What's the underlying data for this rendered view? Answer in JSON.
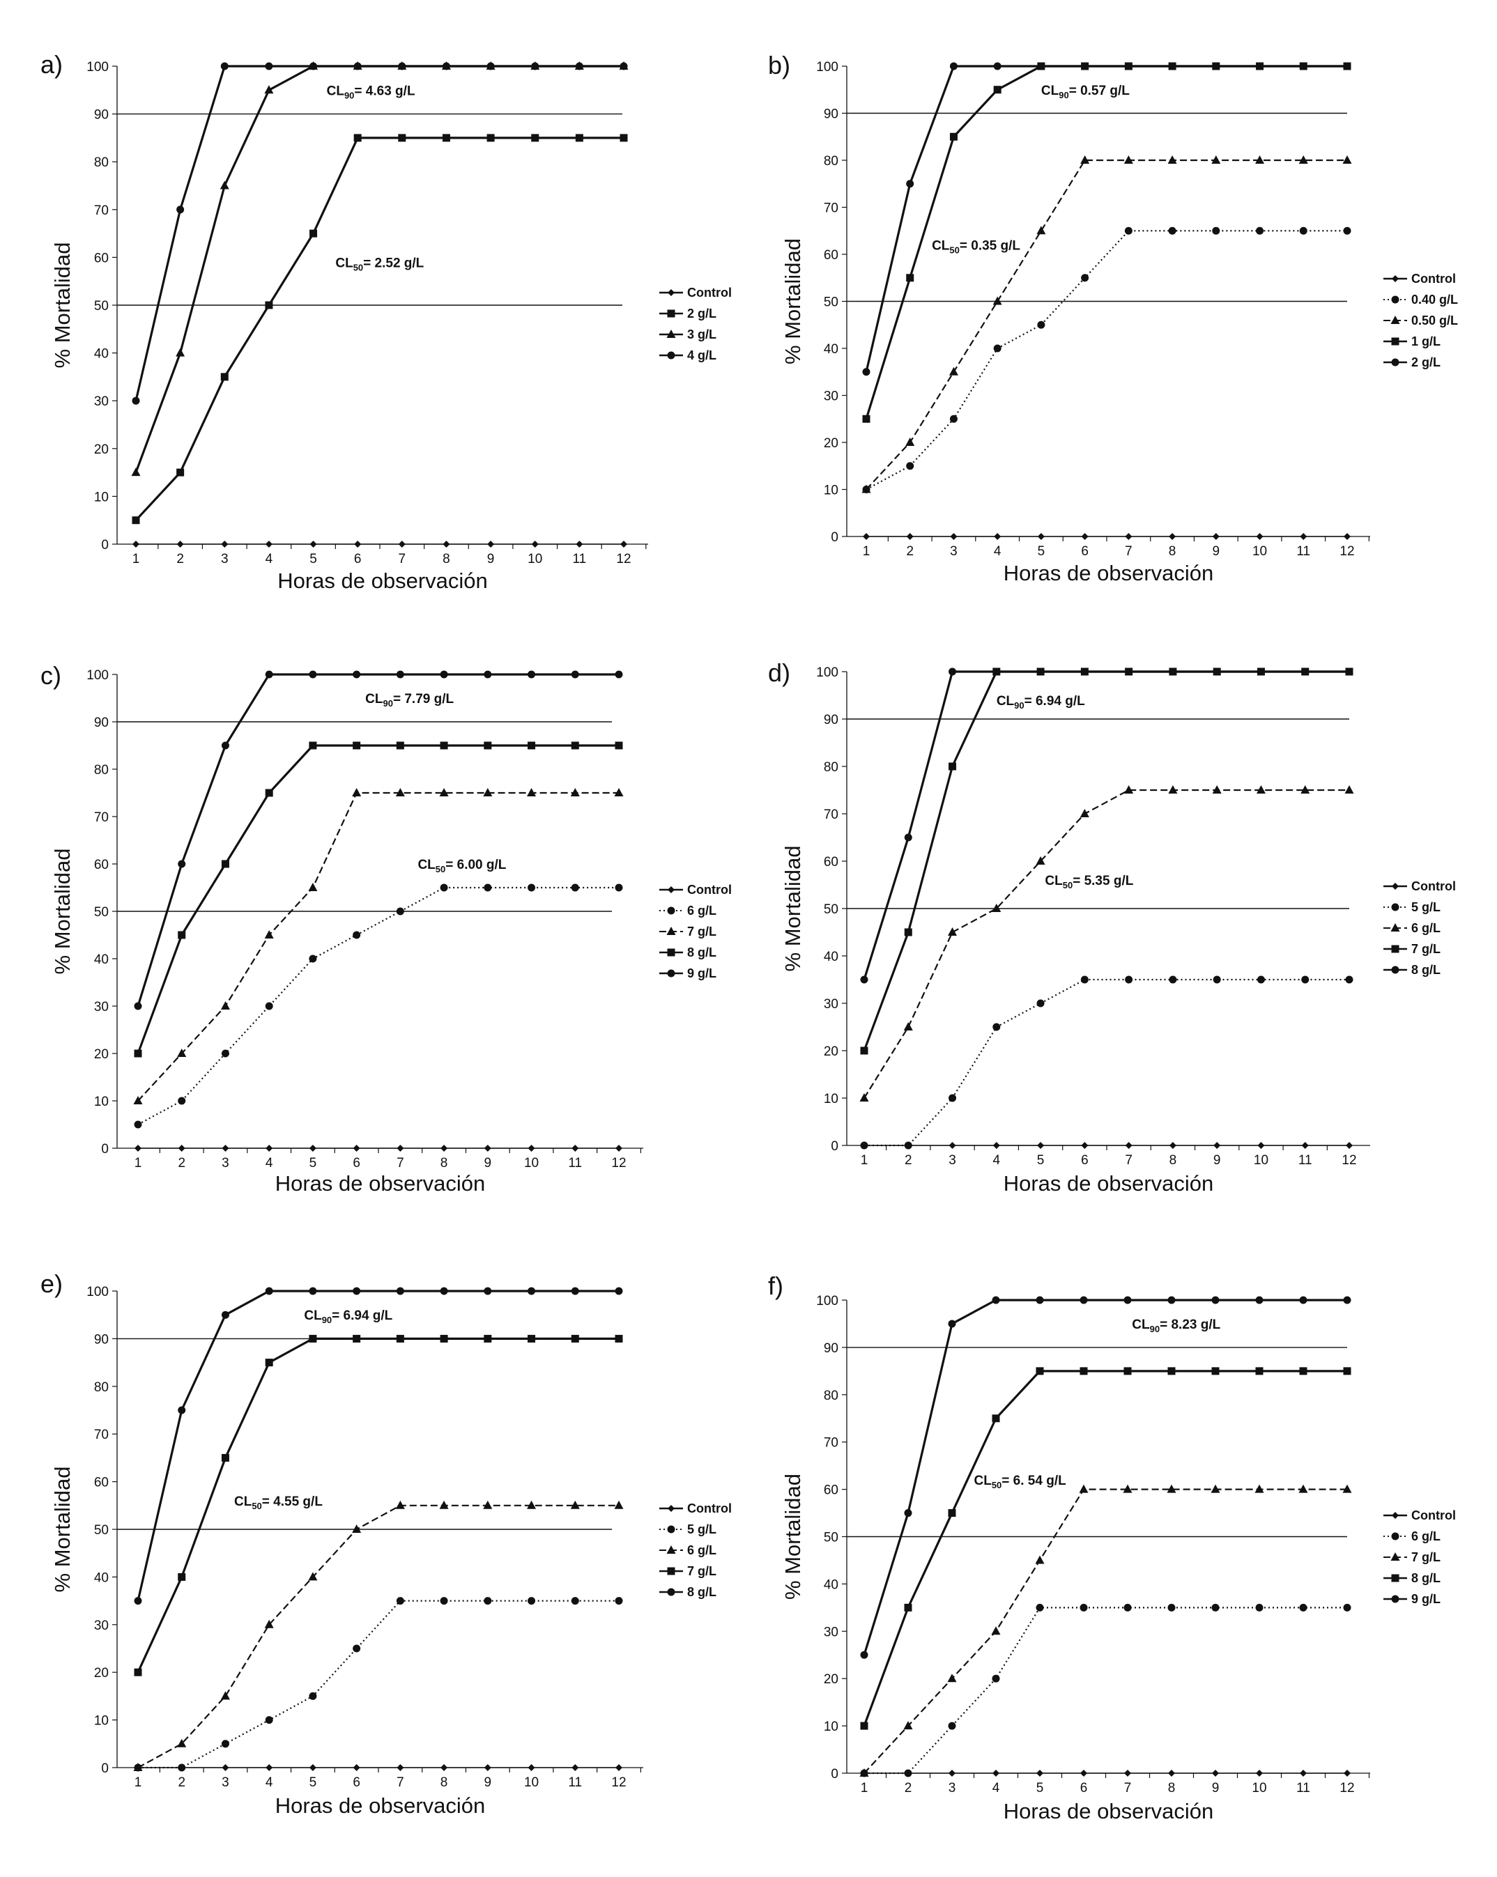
{
  "figure": {
    "colors": {
      "ink": "#111111",
      "background": "#ffffff"
    }
  },
  "chart_data": [
    {
      "type": "line",
      "panel_label": "a)",
      "xlabel": "Horas de observación",
      "ylabel": "% Mortalidad",
      "x": [
        1,
        2,
        3,
        4,
        5,
        6,
        7,
        8,
        9,
        10,
        11,
        12
      ],
      "ylim": [
        0,
        100
      ],
      "yticks": [
        0,
        10,
        20,
        30,
        40,
        50,
        60,
        70,
        80,
        90,
        100
      ],
      "reference_lines": [
        50,
        90
      ],
      "annotations": [
        {
          "base": "CL",
          "sub": "90",
          "value": "= 4.63 g/L",
          "at_x": 5.3,
          "at_y": 95
        },
        {
          "base": "CL",
          "sub": "50",
          "value": "= 2.52 g/L",
          "at_x": 5.5,
          "at_y": 59
        }
      ],
      "series": [
        {
          "name": "Control",
          "marker": "diamond",
          "dash": "solid",
          "values": [
            0,
            0,
            0,
            0,
            0,
            0,
            0,
            0,
            0,
            0,
            0,
            0
          ]
        },
        {
          "name": "2 g/L",
          "marker": "square",
          "dash": "solid",
          "values": [
            5,
            15,
            35,
            50,
            65,
            85,
            85,
            85,
            85,
            85,
            85,
            85
          ]
        },
        {
          "name": "3 g/L",
          "marker": "triangle",
          "dash": "solid",
          "values": [
            15,
            40,
            75,
            95,
            100,
            100,
            100,
            100,
            100,
            100,
            100,
            100
          ]
        },
        {
          "name": "4 g/L",
          "marker": "circle",
          "dash": "solid",
          "values": [
            30,
            70,
            100,
            100,
            100,
            100,
            100,
            100,
            100,
            100,
            100,
            100
          ]
        }
      ]
    },
    {
      "type": "line",
      "panel_label": "b)",
      "xlabel": "Horas de observación",
      "ylabel": "% Mortalidad",
      "x": [
        1,
        2,
        3,
        4,
        5,
        6,
        7,
        8,
        9,
        10,
        11,
        12
      ],
      "ylim": [
        0,
        100
      ],
      "yticks": [
        0,
        10,
        20,
        30,
        40,
        50,
        60,
        70,
        80,
        90,
        100
      ],
      "reference_lines": [
        50,
        90
      ],
      "annotations": [
        {
          "base": "CL",
          "sub": "90",
          "value": "= 0.57 g/L",
          "at_x": 5.0,
          "at_y": 95
        },
        {
          "base": "CL",
          "sub": "50",
          "value": "= 0.35 g/L",
          "at_x": 2.5,
          "at_y": 62
        }
      ],
      "series": [
        {
          "name": "Control",
          "marker": "diamond",
          "dash": "solid",
          "values": [
            0,
            0,
            0,
            0,
            0,
            0,
            0,
            0,
            0,
            0,
            0,
            0
          ]
        },
        {
          "name": "0.40 g/L",
          "marker": "circle",
          "dash": "dotted",
          "values": [
            10,
            15,
            25,
            40,
            45,
            55,
            65,
            65,
            65,
            65,
            65,
            65
          ]
        },
        {
          "name": "0.50 g/L",
          "marker": "triangle",
          "dash": "dashed",
          "values": [
            10,
            20,
            35,
            50,
            65,
            80,
            80,
            80,
            80,
            80,
            80,
            80
          ]
        },
        {
          "name": "1 g/L",
          "marker": "square",
          "dash": "solid",
          "values": [
            25,
            55,
            85,
            95,
            100,
            100,
            100,
            100,
            100,
            100,
            100,
            100
          ]
        },
        {
          "name": "2 g/L",
          "marker": "circle",
          "dash": "solid",
          "values": [
            35,
            75,
            100,
            100,
            100,
            100,
            100,
            100,
            100,
            100,
            100,
            100
          ]
        }
      ]
    },
    {
      "type": "line",
      "panel_label": "c)",
      "xlabel": "Horas de observación",
      "ylabel": "% Mortalidad",
      "x": [
        1,
        2,
        3,
        4,
        5,
        6,
        7,
        8,
        9,
        10,
        11,
        12
      ],
      "ylim": [
        0,
        100
      ],
      "yticks": [
        0,
        10,
        20,
        30,
        40,
        50,
        60,
        70,
        80,
        90,
        100
      ],
      "reference_lines": [
        50,
        90
      ],
      "annotations": [
        {
          "base": "CL",
          "sub": "90",
          "value": "= 7.79 g/L",
          "at_x": 6.2,
          "at_y": 95
        },
        {
          "base": "CL",
          "sub": "50",
          "value": "= 6.00 g/L",
          "at_x": 7.4,
          "at_y": 60
        }
      ],
      "series": [
        {
          "name": "Control",
          "marker": "diamond",
          "dash": "solid",
          "values": [
            0,
            0,
            0,
            0,
            0,
            0,
            0,
            0,
            0,
            0,
            0,
            0
          ]
        },
        {
          "name": "6 g/L",
          "marker": "circle",
          "dash": "dotted",
          "values": [
            5,
            10,
            20,
            30,
            40,
            45,
            50,
            55,
            55,
            55,
            55,
            55
          ]
        },
        {
          "name": "7 g/L",
          "marker": "triangle",
          "dash": "dashed",
          "values": [
            10,
            20,
            30,
            45,
            55,
            75,
            75,
            75,
            75,
            75,
            75,
            75
          ]
        },
        {
          "name": "8 g/L",
          "marker": "square",
          "dash": "solid",
          "values": [
            20,
            45,
            60,
            75,
            85,
            85,
            85,
            85,
            85,
            85,
            85,
            85
          ]
        },
        {
          "name": "9 g/L",
          "marker": "circle",
          "dash": "solid",
          "values": [
            30,
            60,
            85,
            100,
            100,
            100,
            100,
            100,
            100,
            100,
            100,
            100
          ]
        }
      ]
    },
    {
      "type": "line",
      "panel_label": "d)",
      "xlabel": "Horas de observación",
      "ylabel": "% Mortalidad",
      "x": [
        1,
        2,
        3,
        4,
        5,
        6,
        7,
        8,
        9,
        10,
        11,
        12
      ],
      "ylim": [
        0,
        100
      ],
      "yticks": [
        0,
        10,
        20,
        30,
        40,
        50,
        60,
        70,
        80,
        90,
        100
      ],
      "reference_lines": [
        50,
        90
      ],
      "annotations": [
        {
          "base": "CL",
          "sub": "90",
          "value": "= 6.94 g/L",
          "at_x": 4.0,
          "at_y": 94
        },
        {
          "base": "CL",
          "sub": "50",
          "value": "= 5.35 g/L",
          "at_x": 5.1,
          "at_y": 56
        }
      ],
      "series": [
        {
          "name": "Control",
          "marker": "diamond",
          "dash": "solid",
          "values": [
            0,
            0,
            0,
            0,
            0,
            0,
            0,
            0,
            0,
            0,
            0,
            0
          ]
        },
        {
          "name": "5 g/L",
          "marker": "circle",
          "dash": "dotted",
          "values": [
            0,
            0,
            10,
            25,
            30,
            35,
            35,
            35,
            35,
            35,
            35,
            35
          ]
        },
        {
          "name": "6 g/L",
          "marker": "triangle",
          "dash": "dashed",
          "values": [
            10,
            25,
            45,
            50,
            60,
            70,
            75,
            75,
            75,
            75,
            75,
            75
          ]
        },
        {
          "name": "7 g/L",
          "marker": "square",
          "dash": "solid",
          "values": [
            20,
            45,
            80,
            100,
            100,
            100,
            100,
            100,
            100,
            100,
            100,
            100
          ]
        },
        {
          "name": "8 g/L",
          "marker": "circle",
          "dash": "solid",
          "values": [
            35,
            65,
            100,
            100,
            100,
            100,
            100,
            100,
            100,
            100,
            100,
            100
          ]
        }
      ]
    },
    {
      "type": "line",
      "panel_label": "e)",
      "xlabel": "Horas de observación",
      "ylabel": "% Mortalidad",
      "x": [
        1,
        2,
        3,
        4,
        5,
        6,
        7,
        8,
        9,
        10,
        11,
        12
      ],
      "ylim": [
        0,
        100
      ],
      "yticks": [
        0,
        10,
        20,
        30,
        40,
        50,
        60,
        70,
        80,
        90,
        100
      ],
      "reference_lines": [
        50,
        90
      ],
      "annotations": [
        {
          "base": "CL",
          "sub": "90",
          "value": "= 6.94 g/L",
          "at_x": 4.8,
          "at_y": 95
        },
        {
          "base": "CL",
          "sub": "50",
          "value": "= 4.55 g/L",
          "at_x": 3.2,
          "at_y": 56
        }
      ],
      "series": [
        {
          "name": "Control",
          "marker": "diamond",
          "dash": "solid",
          "values": [
            0,
            0,
            0,
            0,
            0,
            0,
            0,
            0,
            0,
            0,
            0,
            0
          ]
        },
        {
          "name": "5 g/L",
          "marker": "circle",
          "dash": "dotted",
          "values": [
            0,
            0,
            5,
            10,
            15,
            25,
            35,
            35,
            35,
            35,
            35,
            35
          ]
        },
        {
          "name": "6 g/L",
          "marker": "triangle",
          "dash": "dashed",
          "values": [
            0,
            5,
            15,
            30,
            40,
            50,
            55,
            55,
            55,
            55,
            55,
            55
          ]
        },
        {
          "name": "7 g/L",
          "marker": "square",
          "dash": "solid",
          "values": [
            20,
            40,
            65,
            85,
            90,
            90,
            90,
            90,
            90,
            90,
            90,
            90
          ]
        },
        {
          "name": "8 g/L",
          "marker": "circle",
          "dash": "solid",
          "values": [
            35,
            75,
            95,
            100,
            100,
            100,
            100,
            100,
            100,
            100,
            100,
            100
          ]
        }
      ]
    },
    {
      "type": "line",
      "panel_label": "f)",
      "xlabel": "Horas de observación",
      "ylabel": "% Mortalidad",
      "x": [
        1,
        2,
        3,
        4,
        5,
        6,
        7,
        8,
        9,
        10,
        11,
        12
      ],
      "ylim": [
        0,
        100
      ],
      "yticks": [
        0,
        10,
        20,
        30,
        40,
        50,
        60,
        70,
        80,
        90,
        100
      ],
      "reference_lines": [
        50,
        90
      ],
      "annotations": [
        {
          "base": "CL",
          "sub": "90",
          "value": "= 8.23 g/L",
          "at_x": 7.1,
          "at_y": 95
        },
        {
          "base": "CL",
          "sub": "50",
          "value": "= 6. 54 g/L",
          "at_x": 3.5,
          "at_y": 62
        }
      ],
      "series": [
        {
          "name": "Control",
          "marker": "diamond",
          "dash": "solid",
          "values": [
            0,
            0,
            0,
            0,
            0,
            0,
            0,
            0,
            0,
            0,
            0,
            0
          ]
        },
        {
          "name": "6 g/L",
          "marker": "circle",
          "dash": "dotted",
          "values": [
            0,
            0,
            10,
            20,
            35,
            35,
            35,
            35,
            35,
            35,
            35,
            35
          ]
        },
        {
          "name": "7 g/L",
          "marker": "triangle",
          "dash": "dashed",
          "values": [
            0,
            10,
            20,
            30,
            45,
            60,
            60,
            60,
            60,
            60,
            60,
            60
          ]
        },
        {
          "name": "8 g/L",
          "marker": "square",
          "dash": "solid",
          "values": [
            10,
            35,
            55,
            75,
            85,
            85,
            85,
            85,
            85,
            85,
            85,
            85
          ]
        },
        {
          "name": "9 g/L",
          "marker": "circle",
          "dash": "solid",
          "values": [
            25,
            55,
            95,
            100,
            100,
            100,
            100,
            100,
            100,
            100,
            100,
            100
          ]
        }
      ]
    }
  ]
}
